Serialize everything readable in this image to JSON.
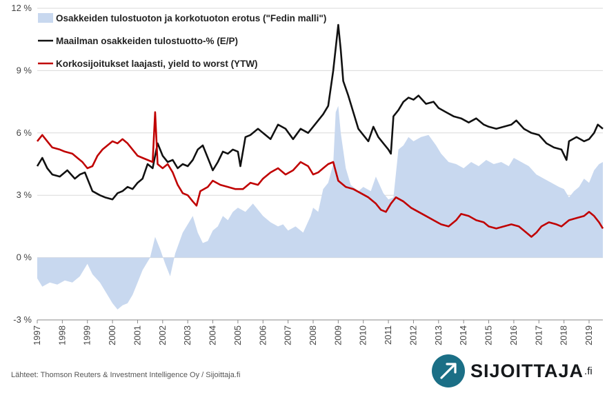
{
  "chart_data": {
    "type": "line",
    "title": "",
    "xlabel": "",
    "ylabel": "",
    "ylim": [
      -3,
      12
    ],
    "xlim": [
      1997.0,
      2019.55
    ],
    "y_ticks": [
      -3,
      0,
      3,
      6,
      9,
      12
    ],
    "y_tick_labels": [
      "-3 %",
      "0 %",
      "3 %",
      "6 %",
      "9 %",
      "12 %"
    ],
    "x_tick_labels": [
      "1997",
      "1998",
      "1999",
      "2000",
      "2001",
      "2002",
      "2003",
      "2004",
      "2005",
      "2006",
      "2007",
      "2008",
      "2009",
      "2010",
      "2011",
      "2012",
      "2013",
      "2014",
      "2015",
      "2016",
      "2017",
      "2018",
      "2019"
    ],
    "grid": "horizontal",
    "legend_position": "top-left",
    "series": [
      {
        "name": "Osakkeiden tulostuoton ja korkotuoton erotus (\"Fedin malli\")",
        "kind": "area",
        "color": "#c8d8ef",
        "points": [
          [
            1997.0,
            -1.0
          ],
          [
            1997.2,
            -1.4
          ],
          [
            1997.5,
            -1.2
          ],
          [
            1997.8,
            -1.3
          ],
          [
            1998.1,
            -1.1
          ],
          [
            1998.4,
            -1.2
          ],
          [
            1998.7,
            -0.9
          ],
          [
            1999.0,
            -0.3
          ],
          [
            1999.2,
            -0.8
          ],
          [
            1999.5,
            -1.2
          ],
          [
            1999.8,
            -1.8
          ],
          [
            2000.0,
            -2.2
          ],
          [
            2000.2,
            -2.5
          ],
          [
            2000.4,
            -2.3
          ],
          [
            2000.6,
            -2.2
          ],
          [
            2000.8,
            -1.8
          ],
          [
            2001.0,
            -1.2
          ],
          [
            2001.2,
            -0.6
          ],
          [
            2001.5,
            0.0
          ],
          [
            2001.7,
            1.0
          ],
          [
            2001.9,
            0.4
          ],
          [
            2002.1,
            -0.3
          ],
          [
            2002.3,
            -0.9
          ],
          [
            2002.5,
            0.2
          ],
          [
            2002.8,
            1.2
          ],
          [
            2003.0,
            1.6
          ],
          [
            2003.2,
            2.0
          ],
          [
            2003.4,
            1.2
          ],
          [
            2003.6,
            0.7
          ],
          [
            2003.8,
            0.8
          ],
          [
            2004.0,
            1.3
          ],
          [
            2004.2,
            1.5
          ],
          [
            2004.4,
            2.0
          ],
          [
            2004.6,
            1.8
          ],
          [
            2004.8,
            2.2
          ],
          [
            2005.0,
            2.4
          ],
          [
            2005.3,
            2.2
          ],
          [
            2005.6,
            2.6
          ],
          [
            2005.8,
            2.3
          ],
          [
            2006.0,
            2.0
          ],
          [
            2006.3,
            1.7
          ],
          [
            2006.6,
            1.5
          ],
          [
            2006.8,
            1.6
          ],
          [
            2007.0,
            1.3
          ],
          [
            2007.3,
            1.5
          ],
          [
            2007.6,
            1.2
          ],
          [
            2007.9,
            2.0
          ],
          [
            2008.0,
            2.4
          ],
          [
            2008.2,
            2.2
          ],
          [
            2008.4,
            3.3
          ],
          [
            2008.6,
            3.6
          ],
          [
            2008.8,
            4.5
          ],
          [
            2008.9,
            7.0
          ],
          [
            2009.0,
            7.3
          ],
          [
            2009.1,
            6.0
          ],
          [
            2009.3,
            4.3
          ],
          [
            2009.5,
            3.5
          ],
          [
            2009.8,
            3.2
          ],
          [
            2010.0,
            3.4
          ],
          [
            2010.3,
            3.2
          ],
          [
            2010.5,
            3.9
          ],
          [
            2010.8,
            3.1
          ],
          [
            2011.0,
            2.8
          ],
          [
            2011.2,
            2.9
          ],
          [
            2011.4,
            5.2
          ],
          [
            2011.6,
            5.4
          ],
          [
            2011.8,
            5.8
          ],
          [
            2012.0,
            5.6
          ],
          [
            2012.3,
            5.8
          ],
          [
            2012.6,
            5.9
          ],
          [
            2012.9,
            5.4
          ],
          [
            2013.1,
            5.0
          ],
          [
            2013.4,
            4.6
          ],
          [
            2013.7,
            4.5
          ],
          [
            2014.0,
            4.3
          ],
          [
            2014.3,
            4.6
          ],
          [
            2014.6,
            4.4
          ],
          [
            2014.9,
            4.7
          ],
          [
            2015.2,
            4.5
          ],
          [
            2015.5,
            4.6
          ],
          [
            2015.8,
            4.4
          ],
          [
            2016.0,
            4.8
          ],
          [
            2016.3,
            4.6
          ],
          [
            2016.6,
            4.4
          ],
          [
            2016.9,
            4.0
          ],
          [
            2017.2,
            3.8
          ],
          [
            2017.5,
            3.6
          ],
          [
            2017.8,
            3.4
          ],
          [
            2018.0,
            3.3
          ],
          [
            2018.2,
            2.9
          ],
          [
            2018.4,
            3.2
          ],
          [
            2018.6,
            3.4
          ],
          [
            2018.8,
            3.8
          ],
          [
            2019.0,
            3.6
          ],
          [
            2019.2,
            4.2
          ],
          [
            2019.4,
            4.5
          ],
          [
            2019.55,
            4.6
          ]
        ]
      },
      {
        "name": "Maailman osakkeiden tulostuotto-% (E/P)",
        "kind": "line",
        "color": "#111111",
        "points": [
          [
            1997.0,
            4.4
          ],
          [
            1997.2,
            4.8
          ],
          [
            1997.4,
            4.3
          ],
          [
            1997.6,
            4.0
          ],
          [
            1997.9,
            3.9
          ],
          [
            1998.2,
            4.2
          ],
          [
            1998.5,
            3.8
          ],
          [
            1998.7,
            4.0
          ],
          [
            1998.9,
            4.1
          ],
          [
            1999.0,
            3.8
          ],
          [
            1999.2,
            3.2
          ],
          [
            1999.5,
            3.0
          ],
          [
            1999.7,
            2.9
          ],
          [
            2000.0,
            2.8
          ],
          [
            2000.2,
            3.1
          ],
          [
            2000.4,
            3.2
          ],
          [
            2000.6,
            3.4
          ],
          [
            2000.8,
            3.3
          ],
          [
            2001.0,
            3.6
          ],
          [
            2001.2,
            3.8
          ],
          [
            2001.4,
            4.5
          ],
          [
            2001.6,
            4.3
          ],
          [
            2001.8,
            5.5
          ],
          [
            2002.0,
            4.9
          ],
          [
            2002.2,
            4.6
          ],
          [
            2002.4,
            4.7
          ],
          [
            2002.6,
            4.3
          ],
          [
            2002.8,
            4.5
          ],
          [
            2003.0,
            4.4
          ],
          [
            2003.2,
            4.7
          ],
          [
            2003.4,
            5.2
          ],
          [
            2003.6,
            5.4
          ],
          [
            2003.8,
            4.8
          ],
          [
            2004.0,
            4.2
          ],
          [
            2004.2,
            4.6
          ],
          [
            2004.4,
            5.1
          ],
          [
            2004.6,
            5.0
          ],
          [
            2004.8,
            5.2
          ],
          [
            2005.0,
            5.1
          ],
          [
            2005.1,
            4.4
          ],
          [
            2005.3,
            5.8
          ],
          [
            2005.5,
            5.9
          ],
          [
            2005.8,
            6.2
          ],
          [
            2006.0,
            6.0
          ],
          [
            2006.3,
            5.7
          ],
          [
            2006.6,
            6.4
          ],
          [
            2006.9,
            6.2
          ],
          [
            2007.2,
            5.7
          ],
          [
            2007.5,
            6.2
          ],
          [
            2007.8,
            6.0
          ],
          [
            2008.0,
            6.3
          ],
          [
            2008.2,
            6.6
          ],
          [
            2008.4,
            6.9
          ],
          [
            2008.6,
            7.3
          ],
          [
            2008.8,
            9.0
          ],
          [
            2009.0,
            11.2
          ],
          [
            2009.1,
            10.0
          ],
          [
            2009.2,
            8.5
          ],
          [
            2009.4,
            7.8
          ],
          [
            2009.6,
            7.0
          ],
          [
            2009.8,
            6.2
          ],
          [
            2010.0,
            5.9
          ],
          [
            2010.2,
            5.6
          ],
          [
            2010.4,
            6.3
          ],
          [
            2010.6,
            5.8
          ],
          [
            2010.8,
            5.5
          ],
          [
            2011.0,
            5.2
          ],
          [
            2011.1,
            5.0
          ],
          [
            2011.2,
            6.8
          ],
          [
            2011.4,
            7.1
          ],
          [
            2011.6,
            7.5
          ],
          [
            2011.8,
            7.7
          ],
          [
            2012.0,
            7.6
          ],
          [
            2012.2,
            7.8
          ],
          [
            2012.5,
            7.4
          ],
          [
            2012.8,
            7.5
          ],
          [
            2013.0,
            7.2
          ],
          [
            2013.3,
            7.0
          ],
          [
            2013.6,
            6.8
          ],
          [
            2013.9,
            6.7
          ],
          [
            2014.2,
            6.5
          ],
          [
            2014.5,
            6.7
          ],
          [
            2014.8,
            6.4
          ],
          [
            2015.0,
            6.3
          ],
          [
            2015.3,
            6.2
          ],
          [
            2015.6,
            6.3
          ],
          [
            2015.9,
            6.4
          ],
          [
            2016.1,
            6.6
          ],
          [
            2016.4,
            6.2
          ],
          [
            2016.7,
            6.0
          ],
          [
            2017.0,
            5.9
          ],
          [
            2017.3,
            5.5
          ],
          [
            2017.6,
            5.3
          ],
          [
            2017.9,
            5.2
          ],
          [
            2018.1,
            4.7
          ],
          [
            2018.2,
            5.6
          ],
          [
            2018.5,
            5.8
          ],
          [
            2018.8,
            5.6
          ],
          [
            2019.0,
            5.7
          ],
          [
            2019.2,
            6.0
          ],
          [
            2019.35,
            6.4
          ],
          [
            2019.55,
            6.2
          ]
        ]
      },
      {
        "name": "Korkosijoitukset laajasti, yield to worst (YTW)",
        "kind": "line",
        "color": "#c00000",
        "points": [
          [
            1997.0,
            5.6
          ],
          [
            1997.2,
            5.9
          ],
          [
            1997.4,
            5.6
          ],
          [
            1997.6,
            5.3
          ],
          [
            1997.9,
            5.2
          ],
          [
            1998.1,
            5.1
          ],
          [
            1998.4,
            5.0
          ],
          [
            1998.6,
            4.8
          ],
          [
            1998.8,
            4.6
          ],
          [
            1999.0,
            4.3
          ],
          [
            1999.2,
            4.4
          ],
          [
            1999.4,
            4.9
          ],
          [
            1999.6,
            5.2
          ],
          [
            1999.8,
            5.4
          ],
          [
            2000.0,
            5.6
          ],
          [
            2000.2,
            5.5
          ],
          [
            2000.4,
            5.7
          ],
          [
            2000.6,
            5.5
          ],
          [
            2000.8,
            5.2
          ],
          [
            2001.0,
            4.9
          ],
          [
            2001.2,
            4.8
          ],
          [
            2001.4,
            4.7
          ],
          [
            2001.6,
            4.6
          ],
          [
            2001.7,
            7.0
          ],
          [
            2001.8,
            4.5
          ],
          [
            2002.0,
            4.3
          ],
          [
            2002.2,
            4.5
          ],
          [
            2002.4,
            4.1
          ],
          [
            2002.6,
            3.5
          ],
          [
            2002.8,
            3.1
          ],
          [
            2003.0,
            3.0
          ],
          [
            2003.2,
            2.7
          ],
          [
            2003.35,
            2.5
          ],
          [
            2003.5,
            3.2
          ],
          [
            2003.8,
            3.4
          ],
          [
            2004.0,
            3.7
          ],
          [
            2004.3,
            3.5
          ],
          [
            2004.6,
            3.4
          ],
          [
            2004.9,
            3.3
          ],
          [
            2005.2,
            3.3
          ],
          [
            2005.5,
            3.6
          ],
          [
            2005.8,
            3.5
          ],
          [
            2006.0,
            3.8
          ],
          [
            2006.3,
            4.1
          ],
          [
            2006.6,
            4.3
          ],
          [
            2006.9,
            4.0
          ],
          [
            2007.2,
            4.2
          ],
          [
            2007.5,
            4.6
          ],
          [
            2007.8,
            4.4
          ],
          [
            2008.0,
            4.0
          ],
          [
            2008.2,
            4.1
          ],
          [
            2008.4,
            4.3
          ],
          [
            2008.6,
            4.5
          ],
          [
            2008.8,
            4.6
          ],
          [
            2009.0,
            3.7
          ],
          [
            2009.3,
            3.4
          ],
          [
            2009.6,
            3.3
          ],
          [
            2009.9,
            3.1
          ],
          [
            2010.2,
            2.9
          ],
          [
            2010.5,
            2.6
          ],
          [
            2010.7,
            2.3
          ],
          [
            2010.9,
            2.2
          ],
          [
            2011.1,
            2.6
          ],
          [
            2011.3,
            2.9
          ],
          [
            2011.6,
            2.7
          ],
          [
            2011.9,
            2.4
          ],
          [
            2012.2,
            2.2
          ],
          [
            2012.5,
            2.0
          ],
          [
            2012.8,
            1.8
          ],
          [
            2013.1,
            1.6
          ],
          [
            2013.4,
            1.5
          ],
          [
            2013.7,
            1.8
          ],
          [
            2013.9,
            2.1
          ],
          [
            2014.2,
            2.0
          ],
          [
            2014.5,
            1.8
          ],
          [
            2014.8,
            1.7
          ],
          [
            2015.0,
            1.5
          ],
          [
            2015.3,
            1.4
          ],
          [
            2015.6,
            1.5
          ],
          [
            2015.9,
            1.6
          ],
          [
            2016.2,
            1.5
          ],
          [
            2016.5,
            1.2
          ],
          [
            2016.7,
            1.0
          ],
          [
            2016.9,
            1.2
          ],
          [
            2017.1,
            1.5
          ],
          [
            2017.4,
            1.7
          ],
          [
            2017.7,
            1.6
          ],
          [
            2017.9,
            1.5
          ],
          [
            2018.2,
            1.8
          ],
          [
            2018.5,
            1.9
          ],
          [
            2018.8,
            2.0
          ],
          [
            2019.0,
            2.2
          ],
          [
            2019.2,
            2.0
          ],
          [
            2019.4,
            1.7
          ],
          [
            2019.55,
            1.4
          ]
        ]
      }
    ]
  },
  "footer": {
    "source": "Lähteet: Thomson Reuters & Investment Intelligence Oy / Sijoittaja.fi",
    "logo_word": "SIJOITTAJA",
    "logo_suffix": ".fi"
  }
}
